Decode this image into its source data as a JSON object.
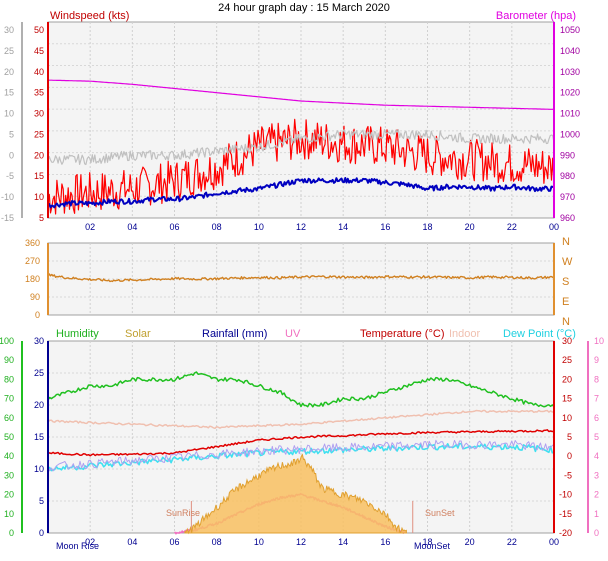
{
  "title": "24 hour graph day : 15 March 2020",
  "chart_data": [
    {
      "type": "line",
      "name": "wind-baro",
      "labels": {
        "left": "Windspeed (kts)",
        "right": "Barometer (hpa)"
      },
      "x_ticks": [
        "02",
        "04",
        "06",
        "08",
        "10",
        "12",
        "14",
        "16",
        "18",
        "20",
        "22",
        "00"
      ],
      "y_left": {
        "ticks": [
          "5",
          "10",
          "15",
          "20",
          "25",
          "30",
          "35",
          "40",
          "45",
          "50"
        ],
        "range": [
          5,
          50
        ]
      },
      "y_right": {
        "ticks": [
          "960",
          "970",
          "980",
          "990",
          "1000",
          "1010",
          "1020",
          "1030",
          "1040",
          "1050"
        ],
        "range": [
          960,
          1050
        ]
      },
      "y_temp": {
        "ticks": [
          "-15",
          "-10",
          "-5",
          "0",
          "5",
          "10",
          "15",
          "20",
          "25",
          "30"
        ],
        "range": [
          -15,
          30
        ]
      },
      "series": [
        {
          "key": "barometer",
          "color": "#e000e0",
          "axis": "right",
          "x": [
            0,
            2,
            4,
            6,
            8,
            10,
            12,
            14,
            16,
            18,
            20,
            22,
            24
          ],
          "y": [
            1026,
            1025.5,
            1024,
            1022,
            1020,
            1018,
            1016,
            1015,
            1014,
            1013.5,
            1013,
            1012.5,
            1012
          ]
        },
        {
          "key": "gust",
          "color": "#ff0000",
          "axis": "left",
          "x": [
            0,
            2,
            4,
            6,
            8,
            10,
            12,
            14,
            16,
            18,
            20,
            22,
            24
          ],
          "y": [
            10,
            11,
            12,
            14,
            17,
            22,
            24,
            23,
            22,
            20,
            19,
            18,
            17
          ]
        },
        {
          "key": "wind-avg",
          "color": "#0000c0",
          "axis": "left",
          "x": [
            0,
            1,
            2,
            3,
            4,
            5,
            6,
            7,
            8,
            9,
            10,
            11,
            12,
            13,
            14,
            15,
            16,
            17,
            18,
            19,
            20,
            21,
            22,
            23,
            24
          ],
          "y": [
            8,
            8.5,
            8.5,
            9,
            9,
            9.5,
            9.5,
            10,
            11,
            11.5,
            12,
            13,
            14,
            14,
            14,
            14,
            13.5,
            13,
            12,
            12.5,
            12.5,
            12,
            12.5,
            12,
            12
          ]
        },
        {
          "key": "temperature-grey",
          "color": "#c0c0c0",
          "axis": "temp",
          "x": [
            0,
            2,
            4,
            6,
            8,
            10,
            12,
            14,
            16,
            18,
            20,
            22,
            24
          ],
          "y": [
            -1,
            -1,
            0,
            0,
            1,
            2,
            4,
            5,
            5,
            5,
            4,
            4,
            4
          ]
        }
      ]
    },
    {
      "type": "scatter",
      "name": "wind-direction",
      "y_left": {
        "ticks": [
          "0",
          "90",
          "180",
          "270",
          "360"
        ],
        "range": [
          0,
          360
        ]
      },
      "y_right_labels": [
        "N",
        "W",
        "S",
        "E",
        "N"
      ],
      "x": [
        0,
        1,
        2,
        3,
        4,
        5,
        6,
        7,
        8,
        9,
        10,
        11,
        12,
        13,
        14,
        15,
        16,
        17,
        18,
        19,
        20,
        21,
        22,
        23,
        24
      ],
      "y": [
        200,
        185,
        178,
        172,
        175,
        178,
        182,
        180,
        182,
        185,
        188,
        186,
        190,
        192,
        190,
        188,
        192,
        190,
        190,
        188,
        186,
        190,
        188,
        185,
        190
      ],
      "color": "#d08020"
    },
    {
      "type": "line",
      "name": "temp-humidity",
      "labels": {
        "humidity": "Humidity",
        "solar": "Solar",
        "rainfall": "Rainfall (mm)",
        "uv": "UV",
        "temperature": "Temperature (°C)",
        "indoor": "Indoor",
        "dewpoint": "Dew Point (°C)"
      },
      "x_ticks": [
        "02",
        "04",
        "06",
        "08",
        "10",
        "12",
        "14",
        "16",
        "18",
        "20",
        "22",
        "00"
      ],
      "y_humidity": {
        "ticks": [
          "0",
          "10",
          "20",
          "30",
          "40",
          "50",
          "60",
          "70",
          "80",
          "90",
          "100"
        ],
        "range": [
          0,
          100
        ]
      },
      "y_rain": {
        "ticks": [
          "0",
          "5",
          "10",
          "15",
          "20",
          "25",
          "30"
        ],
        "range": [
          0,
          30
        ]
      },
      "y_temp": {
        "ticks": [
          "-20",
          "-15",
          "-10",
          "-5",
          "0",
          "5",
          "10",
          "15",
          "20",
          "25",
          "30"
        ],
        "range": [
          -20,
          30
        ]
      },
      "y_uv": {
        "ticks": [
          "0",
          "1",
          "2",
          "3",
          "4",
          "5",
          "6",
          "7",
          "8",
          "9",
          "10"
        ],
        "range": [
          0,
          10
        ]
      },
      "series": [
        {
          "key": "humidity",
          "color": "#20c020",
          "axis": "rain",
          "x": [
            0,
            1,
            2,
            3,
            4,
            5,
            6,
            7,
            8,
            9,
            10,
            11,
            12,
            13,
            14,
            15,
            16,
            17,
            18,
            19,
            20,
            21,
            22,
            23,
            24
          ],
          "y": [
            21,
            22,
            23,
            23,
            24,
            24,
            24,
            25,
            24,
            24,
            23,
            22,
            20,
            20,
            21,
            21,
            22,
            23,
            24,
            24,
            23,
            22,
            21,
            20,
            20
          ]
        },
        {
          "key": "indoor",
          "color": "#f0c0b0",
          "axis": "rain",
          "x": [
            0,
            4,
            8,
            12,
            16,
            20,
            24
          ],
          "y": [
            17.5,
            17,
            16.5,
            17,
            18,
            19,
            19
          ]
        },
        {
          "key": "temperature",
          "color": "#e00000",
          "axis": "rain",
          "x": [
            0,
            2,
            4,
            6,
            8,
            10,
            12,
            14,
            16,
            18,
            20,
            22,
            24
          ],
          "y": [
            12.5,
            12.2,
            12.3,
            12.5,
            13.5,
            14.5,
            15,
            15.2,
            15.5,
            15.7,
            15.8,
            15.9,
            16
          ]
        },
        {
          "key": "dewpoint",
          "color": "#40e0f0",
          "axis": "rain",
          "x": [
            0,
            2,
            4,
            6,
            8,
            10,
            12,
            14,
            16,
            18,
            20,
            22,
            24
          ],
          "y": [
            10,
            10.5,
            11,
            11.5,
            12,
            12.5,
            12.8,
            13,
            13.2,
            13.5,
            13.5,
            13.5,
            13
          ]
        },
        {
          "key": "uv",
          "color": "#f070c0",
          "axis": "rain",
          "x": [
            6,
            7,
            8,
            9,
            10,
            11,
            12,
            13,
            14,
            15,
            16,
            17
          ],
          "y": [
            0,
            0.5,
            1.5,
            3,
            4.5,
            5.5,
            6,
            5,
            4,
            2.5,
            1,
            0
          ]
        },
        {
          "key": "solar",
          "color": "#f0b040",
          "axis": "rain",
          "fill": true,
          "x": [
            6.5,
            7,
            8,
            9,
            10,
            11,
            11.8,
            12,
            12.5,
            13,
            14,
            15,
            16,
            16.5,
            17
          ],
          "y": [
            0,
            1,
            4,
            7,
            9,
            10.5,
            11,
            12,
            10,
            7,
            6,
            5,
            3,
            1,
            0
          ]
        }
      ],
      "annotations": [
        "Moon Rise",
        "SunRise",
        "SunSet",
        "MoonSet"
      ]
    }
  ]
}
